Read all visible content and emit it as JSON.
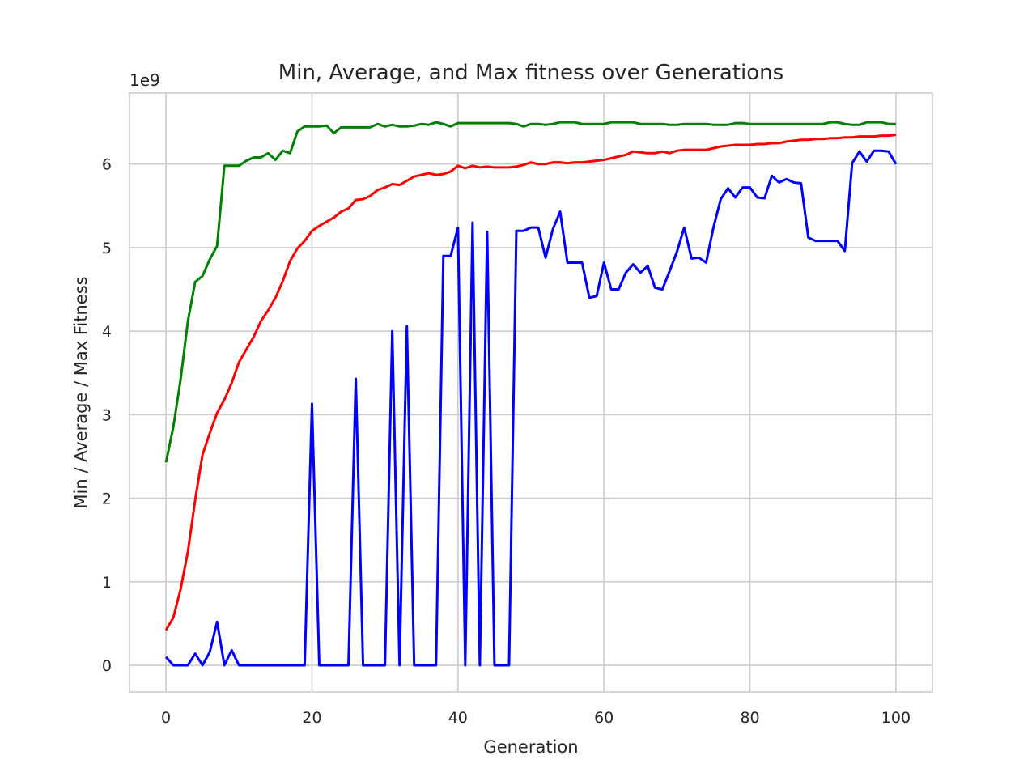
{
  "chart_data": {
    "type": "line",
    "title": "Min, Average, and Max fitness over Generations",
    "xlabel": "Generation",
    "ylabel": "Min / Average / Max Fitness",
    "y_offset_label": "1e9",
    "xlim": [
      -5,
      105
    ],
    "ylim": [
      -0.32,
      6.85
    ],
    "xticks": [
      0,
      20,
      40,
      60,
      80,
      100
    ],
    "yticks": [
      0,
      1,
      2,
      3,
      4,
      5,
      6
    ],
    "grid": true,
    "series": [
      {
        "color": "#008000",
        "values": [
          2.43,
          2.85,
          3.42,
          4.12,
          4.59,
          4.66,
          4.86,
          5.02,
          5.98,
          5.98,
          5.98,
          6.04,
          6.08,
          6.08,
          6.13,
          6.05,
          6.16,
          6.13,
          6.39,
          6.45,
          6.45,
          6.45,
          6.46,
          6.37,
          6.44,
          6.44,
          6.44,
          6.44,
          6.44,
          6.48,
          6.45,
          6.47,
          6.45,
          6.45,
          6.46,
          6.48,
          6.47,
          6.5,
          6.48,
          6.45,
          6.49,
          6.49,
          6.49,
          6.49,
          6.49,
          6.49,
          6.49,
          6.49,
          6.48,
          6.45,
          6.48,
          6.48,
          6.47,
          6.48,
          6.5,
          6.5,
          6.5,
          6.48,
          6.48,
          6.48,
          6.48,
          6.5,
          6.5,
          6.5,
          6.5,
          6.48,
          6.48,
          6.48,
          6.48,
          6.47,
          6.47,
          6.48,
          6.48,
          6.48,
          6.48,
          6.47,
          6.47,
          6.47,
          6.49,
          6.49,
          6.48,
          6.48,
          6.48,
          6.48,
          6.48,
          6.48,
          6.48,
          6.48,
          6.48,
          6.48,
          6.48,
          6.5,
          6.5,
          6.48,
          6.47,
          6.47,
          6.5,
          6.5,
          6.5,
          6.48,
          6.48
        ]
      },
      {
        "color": "#ff0000",
        "values": [
          0.42,
          0.57,
          0.91,
          1.36,
          1.98,
          2.52,
          2.78,
          3.02,
          3.18,
          3.38,
          3.63,
          3.78,
          3.93,
          4.12,
          4.25,
          4.4,
          4.6,
          4.84,
          4.99,
          5.08,
          5.2,
          5.26,
          5.31,
          5.36,
          5.43,
          5.47,
          5.57,
          5.58,
          5.62,
          5.69,
          5.72,
          5.76,
          5.75,
          5.8,
          5.85,
          5.87,
          5.89,
          5.87,
          5.88,
          5.91,
          5.98,
          5.95,
          5.98,
          5.96,
          5.97,
          5.96,
          5.96,
          5.96,
          5.97,
          5.99,
          6.02,
          6.0,
          6.0,
          6.02,
          6.02,
          6.01,
          6.02,
          6.02,
          6.03,
          6.04,
          6.05,
          6.07,
          6.09,
          6.11,
          6.15,
          6.14,
          6.13,
          6.13,
          6.15,
          6.13,
          6.16,
          6.17,
          6.17,
          6.17,
          6.17,
          6.19,
          6.21,
          6.22,
          6.23,
          6.23,
          6.23,
          6.24,
          6.24,
          6.25,
          6.25,
          6.27,
          6.28,
          6.29,
          6.29,
          6.3,
          6.3,
          6.31,
          6.31,
          6.32,
          6.32,
          6.33,
          6.33,
          6.33,
          6.34,
          6.34,
          6.35
        ]
      },
      {
        "color": "#0000ff",
        "values": [
          0.1,
          0.0,
          0.0,
          0.0,
          0.14,
          0.0,
          0.16,
          0.52,
          0.0,
          0.18,
          0.0,
          0.0,
          0.0,
          0.0,
          0.0,
          0.0,
          0.0,
          0.0,
          0.0,
          0.0,
          3.13,
          0.0,
          0.0,
          0.0,
          0.0,
          0.0,
          3.43,
          0.0,
          0.0,
          0.0,
          0.0,
          4.0,
          0.0,
          4.06,
          0.0,
          0.0,
          0.0,
          0.0,
          4.9,
          4.9,
          5.24,
          0.0,
          5.3,
          0.0,
          5.19,
          0.0,
          0.0,
          0.0,
          5.2,
          5.2,
          5.24,
          5.24,
          4.88,
          5.22,
          5.43,
          4.82,
          4.82,
          4.82,
          4.4,
          4.42,
          4.82,
          4.5,
          4.5,
          4.7,
          4.8,
          4.7,
          4.78,
          4.52,
          4.5,
          4.72,
          4.95,
          5.24,
          4.87,
          4.88,
          4.82,
          5.24,
          5.58,
          5.71,
          5.6,
          5.72,
          5.72,
          5.6,
          5.59,
          5.86,
          5.78,
          5.82,
          5.78,
          5.77,
          5.12,
          5.08,
          5.08,
          5.08,
          5.08,
          4.96,
          6.01,
          6.15,
          6.03,
          6.16,
          6.16,
          6.15,
          6.0
        ]
      }
    ]
  }
}
